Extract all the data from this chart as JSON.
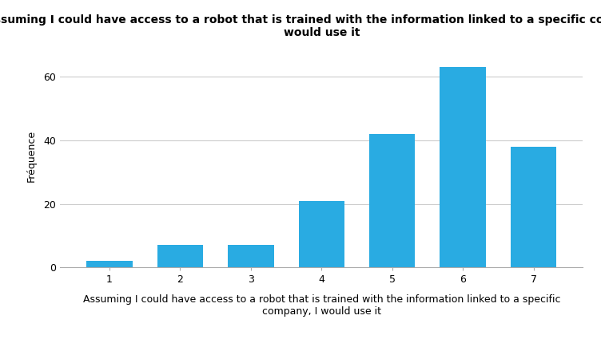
{
  "categories": [
    1,
    2,
    3,
    4,
    5,
    6,
    7
  ],
  "values": [
    2,
    7,
    7,
    21,
    42,
    63,
    38
  ],
  "bar_color": "#29ABE2",
  "title": "Assuming I could have access to a robot that is trained with the information linked to a specific company, I\nwould use it",
  "xlabel": "Assuming I could have access to a robot that is trained with the information linked to a specific\ncompany, I would use it",
  "ylabel": "Fréquence",
  "ylim": [
    0,
    70
  ],
  "yticks": [
    0,
    20,
    40,
    60
  ],
  "background_color": "#ffffff",
  "grid_color": "#cccccc",
  "title_fontsize": 10,
  "label_fontsize": 9,
  "tick_fontsize": 9
}
